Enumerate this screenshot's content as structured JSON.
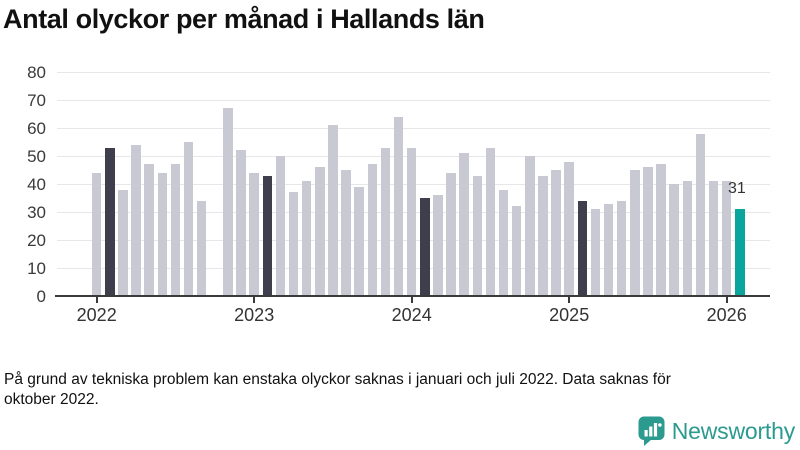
{
  "title": "Antal olyckor per månad i Hallands län",
  "footnote": "På grund av tekniska problem kan enstaka olyckor saknas i januari och juli 2022. Data saknas för oktober 2022.",
  "branding": {
    "logo_text": "Newsworthy",
    "logo_icon": "speech-bubble-bar-chart-icon"
  },
  "colors": {
    "bar_light": "#c9c9d3",
    "bar_dark": "#3e3e4d",
    "bar_teal": "#0aa69e",
    "gridline": "#e7e7e7",
    "axis": "#3a3a3a",
    "text": "#111111",
    "logo_teal": "#2b9a8f"
  },
  "chart_data": {
    "type": "bar",
    "title": "Antal olyckor per månad i Hallands län",
    "x_frequency": "monthly",
    "x_start": "2022-01",
    "x_end": "2026-02",
    "values": [
      44,
      53,
      38,
      54,
      47,
      44,
      47,
      55,
      34,
      null,
      67,
      52,
      44,
      43,
      50,
      37,
      41,
      46,
      61,
      45,
      39,
      47,
      53,
      64,
      53,
      35,
      36,
      44,
      51,
      43,
      53,
      38,
      32,
      50,
      43,
      45,
      48,
      34,
      31,
      33,
      34,
      45,
      46,
      47,
      40,
      41,
      58,
      41,
      41,
      31
    ],
    "missing_months": [
      "2022-10"
    ],
    "highlight_dark_months": [
      "2022-02",
      "2023-02",
      "2024-02",
      "2025-02"
    ],
    "highlight_teal_month": "2026-02",
    "annotation": {
      "text": "31",
      "month": "2026-02"
    },
    "ylim": [
      0,
      80
    ],
    "yticks": [
      0,
      10,
      20,
      30,
      40,
      50,
      60,
      70,
      80
    ],
    "xticks": [
      "2022",
      "2023",
      "2024",
      "2025",
      "2026"
    ],
    "xlabel": "",
    "ylabel": "",
    "grid": true,
    "legend": false
  }
}
